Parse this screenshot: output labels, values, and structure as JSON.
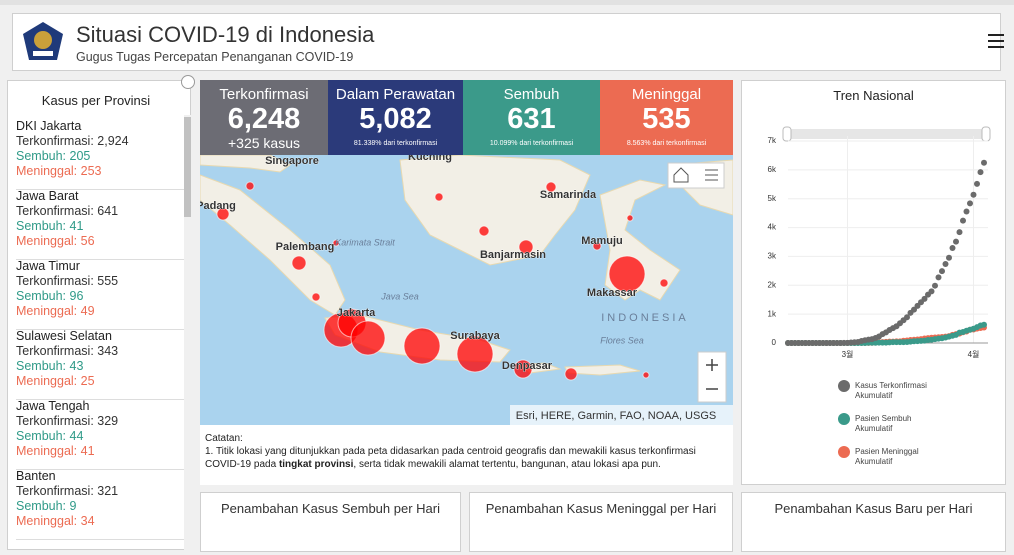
{
  "header": {
    "title": "Situasi COVID-19 di Indonesia",
    "subtitle": "Gugus Tugas Percepatan Penanganan COVID-19"
  },
  "provinces": {
    "title": "Kasus per Provinsi",
    "items": [
      {
        "name": "DKI Jakarta",
        "confirmed": "Terkonfirmasi: 2,924",
        "recovered": "Sembuh: 205",
        "deaths": "Meninggal: 253"
      },
      {
        "name": "Jawa Barat",
        "confirmed": "Terkonfirmasi: 641",
        "recovered": "Sembuh: 41",
        "deaths": "Meninggal: 56"
      },
      {
        "name": "Jawa Timur",
        "confirmed": "Terkonfirmasi: 555",
        "recovered": "Sembuh: 96",
        "deaths": "Meninggal: 49"
      },
      {
        "name": "Sulawesi Selatan",
        "confirmed": "Terkonfirmasi: 343",
        "recovered": "Sembuh: 43",
        "deaths": "Meninggal: 25"
      },
      {
        "name": "Jawa Tengah",
        "confirmed": "Terkonfirmasi: 329",
        "recovered": "Sembuh: 44",
        "deaths": "Meninggal: 41"
      },
      {
        "name": "Banten",
        "confirmed": "Terkonfirmasi: 321",
        "recovered": "Sembuh: 9",
        "deaths": "Meninggal: 34"
      }
    ]
  },
  "stats": [
    {
      "label": "Terkonfirmasi",
      "value": "6,248",
      "sub": "+325 kasus"
    },
    {
      "label": "Dalam Perawatan",
      "value": "5,082",
      "sub": "81.338% dari terkonfirmasi"
    },
    {
      "label": "Sembuh",
      "value": "631",
      "sub": "10.099% dari terkonfirmasi"
    },
    {
      "label": "Meninggal",
      "value": "535",
      "sub": "8.563% dari terkonfirmasi"
    }
  ],
  "map": {
    "places": [
      "Singapore",
      "Kuching",
      "Padang",
      "Palembang",
      "Samarinda",
      "Mamuju",
      "Banjarmasin",
      "Karimata Strait",
      "Java Sea",
      "Jakarta",
      "Makassar",
      "INDONESIA",
      "Surabaya",
      "Flores Sea",
      "Denpasar"
    ],
    "attribution": "Esri, HERE, Garmin, FAO, NOAA, USGS"
  },
  "notes": {
    "title": "Catatan:",
    "text": "1. Titik lokasi yang ditunjukkan pada peta didasarkan pada centroid geografis dan mewakili kasus terkonfirmasi COVID-19 pada ",
    "bold": "tingkat provinsi",
    "rest": ", serta tidak mewakili alamat tertentu, bangunan, atau lokasi apa pun."
  },
  "bottom": [
    "Penambahan Kasus Sembuh per Hari",
    "Penambahan Kasus Meninggal per Hari",
    "Penambahan Kasus Baru per Hari"
  ],
  "chart_data": {
    "type": "scatter",
    "title": "Tren Nasional",
    "categories": [
      null,
      null,
      null,
      null,
      null,
      null,
      null,
      null,
      null,
      null,
      null,
      null,
      null,
      null,
      null,
      null,
      null,
      "3월",
      null,
      null,
      null,
      null,
      null,
      null,
      null,
      null,
      null,
      null,
      null,
      null,
      null,
      null,
      null,
      null,
      null,
      null,
      null,
      null,
      null,
      null,
      null,
      null,
      null,
      null,
      null,
      null,
      null,
      null,
      null,
      null,
      null,
      null,
      null,
      "4월",
      null,
      null,
      null
    ],
    "ylim": [
      0,
      7000
    ],
    "yticks": [
      0,
      {
        "value": 1000,
        "label": "1k"
      },
      {
        "value": 2000,
        "label": "2k"
      },
      {
        "value": 3000,
        "label": "3k"
      },
      {
        "value": 4000,
        "label": "4k"
      },
      {
        "value": 5000,
        "label": "5k"
      },
      {
        "value": 6000,
        "label": "6k"
      },
      {
        "value": 7000,
        "label": "7k"
      }
    ],
    "grid": true,
    "series": [
      {
        "name": "Kasus Terkonfirmasi Akumulatif",
        "color": "#6b6b6b",
        "values": [
          0,
          0,
          0,
          0,
          0,
          0,
          0,
          0,
          0,
          0,
          0,
          0,
          0,
          0,
          2,
          2,
          4,
          6,
          19,
          27,
          34,
          69,
          96,
          117,
          134,
          172,
          227,
          309,
          369,
          450,
          514,
          579,
          686,
          790,
          893,
          1046,
          1155,
          1285,
          1414,
          1528,
          1677,
          1790,
          1986,
          2273,
          2491,
          2738,
          2956,
          3293,
          3512,
          3842,
          4241,
          4557,
          4839,
          5136,
          5516,
          5923,
          6248
        ]
      },
      {
        "name": "Pasien Sembuh Akumulatif",
        "color": "#3a9a8a",
        "values": [
          0,
          0,
          0,
          0,
          0,
          0,
          0,
          0,
          0,
          0,
          0,
          0,
          0,
          0,
          0,
          0,
          0,
          0,
          0,
          0,
          0,
          0,
          0,
          8,
          8,
          9,
          11,
          15,
          15,
          20,
          29,
          30,
          30,
          31,
          35,
          46,
          59,
          64,
          75,
          81,
          103,
          112,
          134,
          150,
          164,
          192,
          222,
          252,
          282,
          359,
          380,
          426,
          458,
          495,
          548,
          607,
          631
        ]
      },
      {
        "name": "Pasien Meninggal Akumulatif",
        "color": "#ec6b52",
        "values": [
          0,
          0,
          0,
          0,
          0,
          0,
          0,
          0,
          0,
          0,
          0,
          0,
          0,
          0,
          0,
          0,
          0,
          0,
          0,
          1,
          4,
          5,
          5,
          5,
          7,
          19,
          25,
          32,
          38,
          48,
          49,
          55,
          58,
          78,
          87,
          102,
          114,
          122,
          136,
          157,
          170,
          181,
          191,
          198,
          209,
          221,
          240,
          280,
          306,
          327,
          373,
          399,
          459,
          469,
          496,
          520,
          535
        ]
      }
    ]
  }
}
